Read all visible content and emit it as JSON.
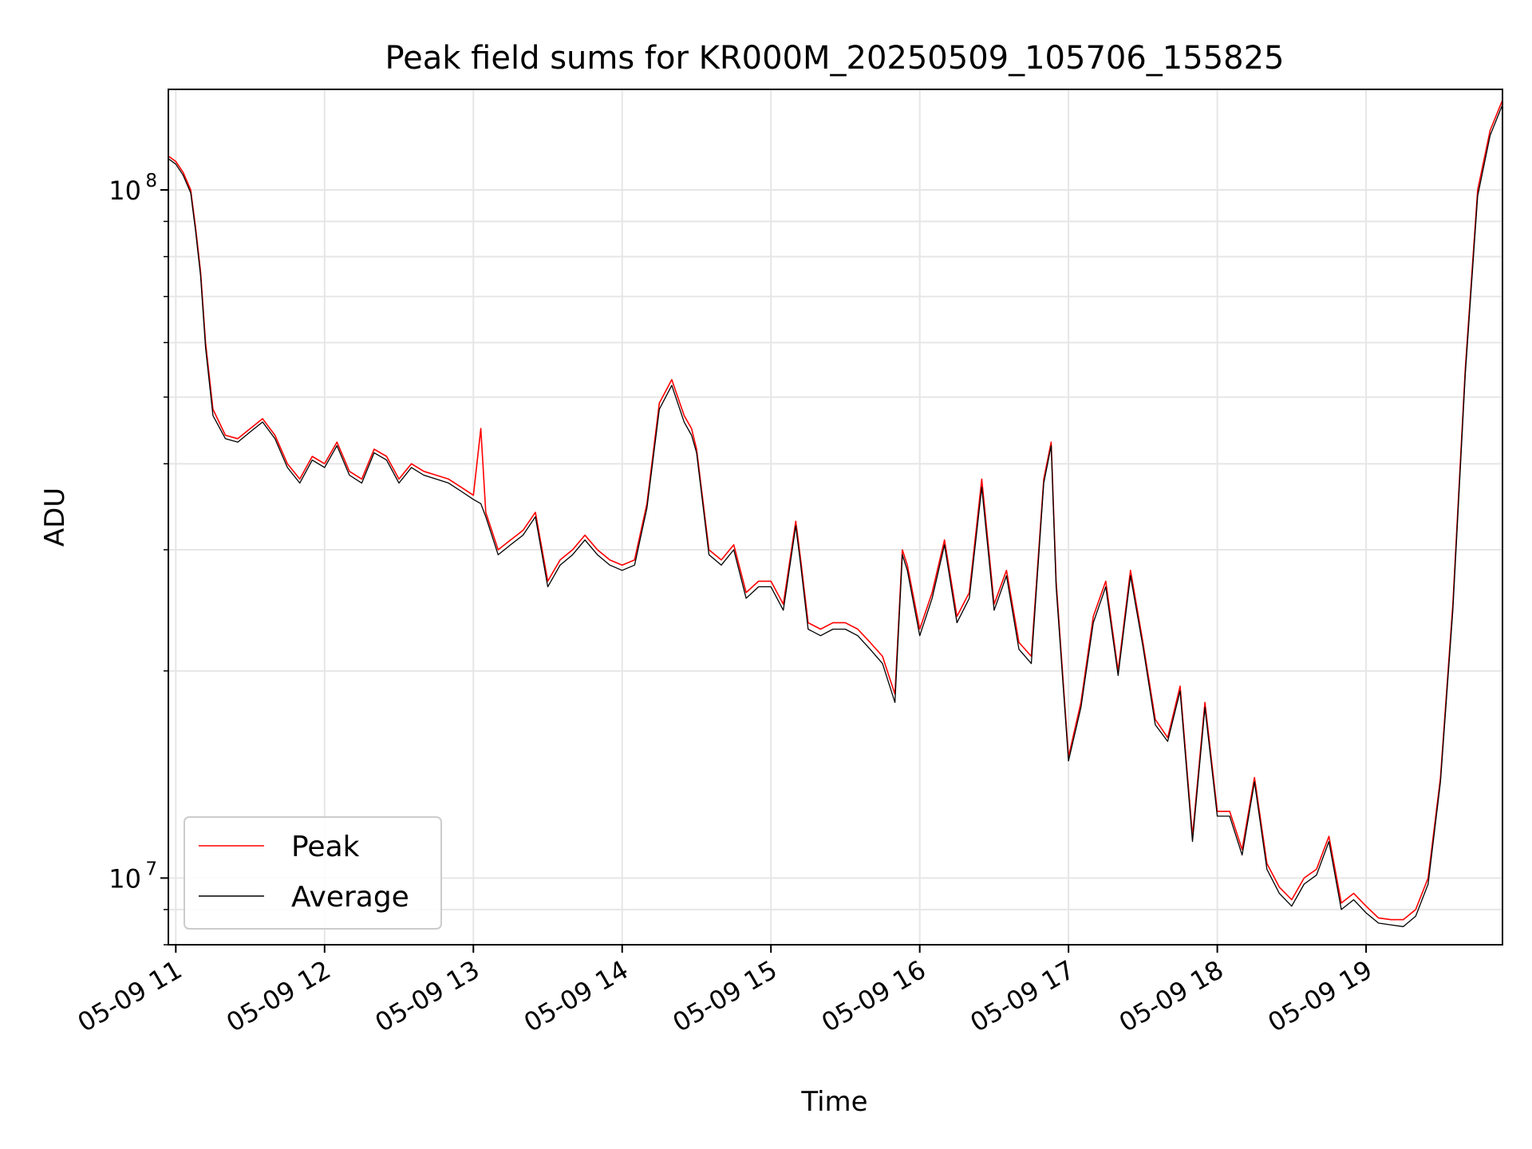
{
  "chart_data": {
    "type": "line",
    "title": "Peak field sums for KR000M_20250509_105706_155825",
    "xlabel": "Time",
    "ylabel": "ADU",
    "y_scale": "log",
    "ylim": [
      8000000,
      140000000
    ],
    "xlim": [
      "2025-05-09 10:57",
      "2025-05-09 19:55"
    ],
    "grid": true,
    "legend_position": "lower-left",
    "x_ticks": [
      "05-09 11",
      "05-09 12",
      "05-09 13",
      "05-09 14",
      "05-09 15",
      "05-09 16",
      "05-09 17",
      "05-09 18",
      "05-09 19"
    ],
    "y_ticks": [
      {
        "label": "10",
        "exponent": "8",
        "value": 100000000
      },
      {
        "label": "10",
        "exponent": "7",
        "value": 10000000
      }
    ],
    "x": [
      "10:57",
      "11:00",
      "11:03",
      "11:06",
      "11:08",
      "11:10",
      "11:12",
      "11:15",
      "11:20",
      "11:25",
      "11:30",
      "11:35",
      "11:40",
      "11:45",
      "11:50",
      "11:55",
      "12:00",
      "12:05",
      "12:10",
      "12:15",
      "12:20",
      "12:25",
      "12:30",
      "12:35",
      "12:40",
      "12:45",
      "12:50",
      "12:55",
      "13:00",
      "13:03",
      "13:05",
      "13:10",
      "13:15",
      "13:20",
      "13:25",
      "13:30",
      "13:35",
      "13:40",
      "13:45",
      "13:50",
      "13:55",
      "14:00",
      "14:05",
      "14:10",
      "14:15",
      "14:20",
      "14:25",
      "14:28",
      "14:30",
      "14:35",
      "14:40",
      "14:45",
      "14:50",
      "14:55",
      "15:00",
      "15:05",
      "15:10",
      "15:12",
      "15:15",
      "15:20",
      "15:25",
      "15:30",
      "15:35",
      "15:40",
      "15:45",
      "15:50",
      "15:53",
      "15:55",
      "16:00",
      "16:05",
      "16:10",
      "16:15",
      "16:20",
      "16:25",
      "16:30",
      "16:35",
      "16:40",
      "16:45",
      "16:50",
      "16:53",
      "16:55",
      "17:00",
      "17:05",
      "17:10",
      "17:15",
      "17:20",
      "17:25",
      "17:30",
      "17:35",
      "17:40",
      "17:45",
      "17:50",
      "17:55",
      "18:00",
      "18:05",
      "18:10",
      "18:15",
      "18:20",
      "18:25",
      "18:30",
      "18:35",
      "18:40",
      "18:45",
      "18:50",
      "18:55",
      "19:00",
      "19:05",
      "19:10",
      "19:15",
      "19:20",
      "19:25",
      "19:30",
      "19:35",
      "19:40",
      "19:45",
      "19:50",
      "19:55"
    ],
    "series": [
      {
        "name": "Peak",
        "color": "#ff0000",
        "values": [
          112000000,
          110000000,
          106000000,
          100000000,
          88000000,
          76000000,
          60000000,
          48000000,
          44000000,
          43500000,
          45000000,
          46500000,
          44000000,
          40000000,
          38000000,
          41000000,
          40000000,
          43000000,
          39000000,
          38000000,
          42000000,
          41000000,
          38000000,
          40000000,
          39000000,
          38500000,
          38000000,
          37000000,
          36000000,
          45000000,
          34000000,
          30000000,
          31000000,
          32000000,
          34000000,
          27000000,
          29000000,
          30000000,
          31500000,
          30000000,
          29000000,
          28500000,
          29000000,
          35000000,
          49000000,
          53000000,
          47000000,
          45000000,
          42000000,
          30000000,
          29000000,
          30500000,
          26000000,
          27000000,
          27000000,
          25000000,
          33000000,
          29000000,
          23500000,
          23000000,
          23500000,
          23500000,
          23000000,
          22000000,
          21000000,
          18500000,
          30000000,
          28500000,
          23000000,
          26000000,
          31000000,
          24000000,
          26000000,
          38000000,
          25000000,
          28000000,
          22000000,
          21000000,
          38000000,
          43000000,
          27000000,
          15000000,
          18000000,
          24000000,
          27000000,
          20000000,
          28000000,
          22000000,
          17000000,
          16000000,
          19000000,
          11500000,
          18000000,
          12500000,
          12500000,
          11000000,
          14000000,
          10500000,
          9700000,
          9300000,
          10000000,
          10300000,
          11500000,
          9200000,
          9500000,
          9100000,
          8750000,
          8700000,
          8700000,
          9000000,
          10000000,
          14000000,
          25000000,
          55000000,
          100000000,
          122000000,
          135000000
        ]
      },
      {
        "name": "Average",
        "color": "#000000",
        "values": [
          111000000,
          109000000,
          105000000,
          99000000,
          87000000,
          75000000,
          59000000,
          47000000,
          43500000,
          43000000,
          44500000,
          46000000,
          43500000,
          39500000,
          37500000,
          40500000,
          39500000,
          42500000,
          38500000,
          37500000,
          41500000,
          40500000,
          37500000,
          39500000,
          38500000,
          38000000,
          37500000,
          36500000,
          35500000,
          35000000,
          33500000,
          29500000,
          30500000,
          31500000,
          33500000,
          26500000,
          28500000,
          29500000,
          31000000,
          29500000,
          28500000,
          28000000,
          28500000,
          34500000,
          48000000,
          52000000,
          46000000,
          44000000,
          41500000,
          29500000,
          28500000,
          30000000,
          25500000,
          26500000,
          26500000,
          24500000,
          32500000,
          28500000,
          23000000,
          22500000,
          23000000,
          23000000,
          22500000,
          21500000,
          20500000,
          18000000,
          29500000,
          28000000,
          22500000,
          25500000,
          30500000,
          23500000,
          25500000,
          37000000,
          24500000,
          27500000,
          21500000,
          20500000,
          37500000,
          42500000,
          26500000,
          14800000,
          17700000,
          23500000,
          26500000,
          19700000,
          27500000,
          21700000,
          16700000,
          15800000,
          18700000,
          11300000,
          17700000,
          12300000,
          12300000,
          10800000,
          13800000,
          10300000,
          9500000,
          9100000,
          9800000,
          10100000,
          11300000,
          9000000,
          9300000,
          8900000,
          8600000,
          8550000,
          8500000,
          8800000,
          9800000,
          13800000,
          24500000,
          54000000,
          98000000,
          120000000,
          133000000
        ]
      }
    ]
  }
}
